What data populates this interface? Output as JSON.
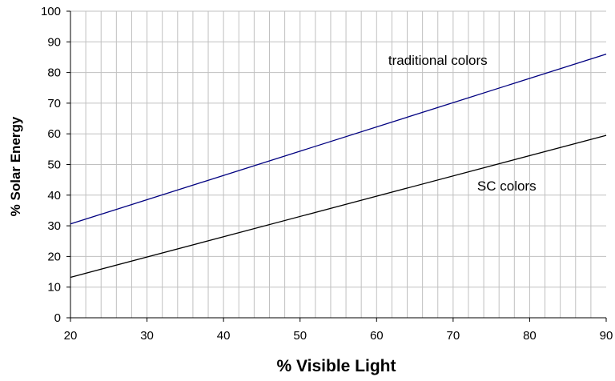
{
  "chart_data": {
    "type": "line",
    "title": "",
    "xlabel": "% Visible Light",
    "ylabel": "% Solar Energy",
    "xlim": [
      20,
      90
    ],
    "ylim": [
      0,
      100
    ],
    "x_ticks": [
      20,
      30,
      40,
      50,
      60,
      70,
      80,
      90
    ],
    "y_ticks": [
      0,
      10,
      20,
      30,
      40,
      50,
      60,
      70,
      80,
      90,
      100
    ],
    "x_minor_step": 2,
    "grid": true,
    "legend": "none",
    "series": [
      {
        "name": "traditional colors",
        "color": "#000080",
        "x": [
          20,
          90
        ],
        "y": [
          30.6,
          86.0
        ],
        "label_at": [
          68,
          82.5
        ]
      },
      {
        "name": "SC colors",
        "color": "#000000",
        "x": [
          20,
          90
        ],
        "y": [
          13.2,
          59.5
        ],
        "label_at": [
          77,
          41.5
        ]
      }
    ]
  }
}
